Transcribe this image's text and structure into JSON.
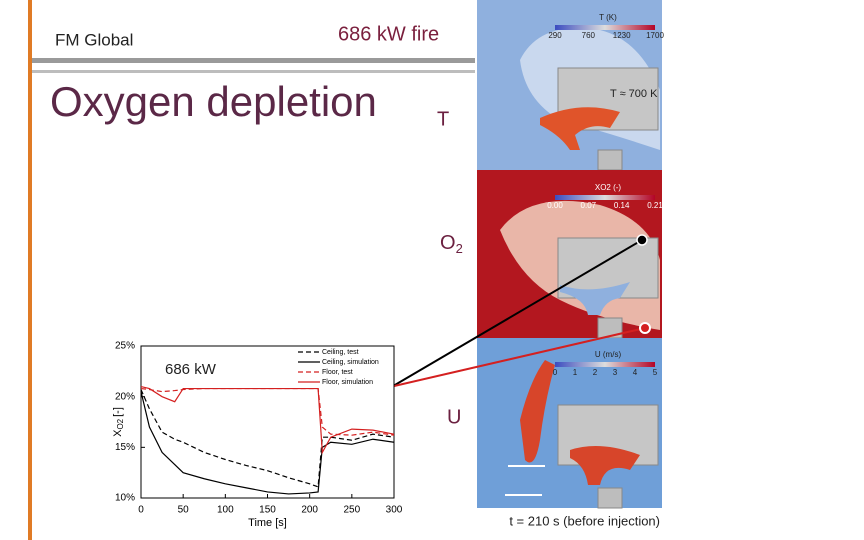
{
  "slide": {
    "org": "FM Global",
    "fire": "686 kW fire",
    "title": "Oxygen depletion",
    "label_t": "T",
    "label_o2": {
      "main": "O",
      "sub": "2"
    },
    "label_u": "U",
    "caption": "t = 210 s (before injection)",
    "t_note": "T ≈ 700 K",
    "colorbars": [
      {
        "title": "T (K)",
        "ticks": [
          "290",
          "760",
          "1230",
          "1700"
        ]
      },
      {
        "title": "XO2 (-)",
        "ticks": [
          "0.00",
          "0.07",
          "0.14",
          "0.21"
        ]
      },
      {
        "title": "U (m/s)",
        "ticks": [
          "0",
          "1",
          "2",
          "3",
          "4",
          "5"
        ]
      }
    ]
  },
  "chart_data": {
    "type": "line",
    "annotation": "686 kW",
    "x_label": "Time [s]",
    "y_label": {
      "main": "X",
      "sub": "O2",
      "unit": "[-]"
    },
    "x": [
      0,
      10,
      25,
      40,
      50,
      75,
      100,
      125,
      150,
      175,
      200,
      210,
      215,
      225,
      250,
      275,
      300
    ],
    "series": [
      {
        "name": "Ceiling, test",
        "color": "#000000",
        "style": "dashed",
        "values": [
          20.7,
          18.8,
          16.5,
          15.8,
          15.5,
          14.5,
          13.8,
          13.2,
          12.7,
          12.0,
          11.4,
          11.1,
          16.0,
          16.0,
          15.7,
          16.3,
          16.0
        ]
      },
      {
        "name": "Ceiling, simulation",
        "color": "#000000",
        "style": "solid",
        "values": [
          20.5,
          17.0,
          14.5,
          13.3,
          12.5,
          11.9,
          11.4,
          11.0,
          10.6,
          10.4,
          10.5,
          10.6,
          15.0,
          15.5,
          15.3,
          15.8,
          15.5
        ]
      },
      {
        "name": "Floor, test",
        "color": "#d42020",
        "style": "dashed",
        "values": [
          20.8,
          20.7,
          20.5,
          20.6,
          20.7,
          20.8,
          20.8,
          20.8,
          20.8,
          20.8,
          20.8,
          20.8,
          17.0,
          16.3,
          16.2,
          16.5,
          16.2
        ]
      },
      {
        "name": "Floor, simulation",
        "color": "#d42020",
        "style": "solid",
        "values": [
          21.0,
          20.8,
          20.0,
          19.5,
          20.8,
          20.8,
          20.8,
          20.8,
          20.8,
          20.8,
          20.8,
          20.8,
          14.5,
          16.0,
          16.8,
          16.7,
          16.3
        ]
      }
    ],
    "xlim": [
      0,
      300
    ],
    "xticks": [
      0,
      50,
      100,
      150,
      200,
      250,
      300
    ],
    "ylim": [
      10,
      25
    ],
    "yticks": [
      {
        "value": 10,
        "label": "10%"
      },
      {
        "value": 15,
        "label": "15%"
      },
      {
        "value": 20,
        "label": "20%"
      },
      {
        "value": 25,
        "label": "25%"
      }
    ]
  }
}
